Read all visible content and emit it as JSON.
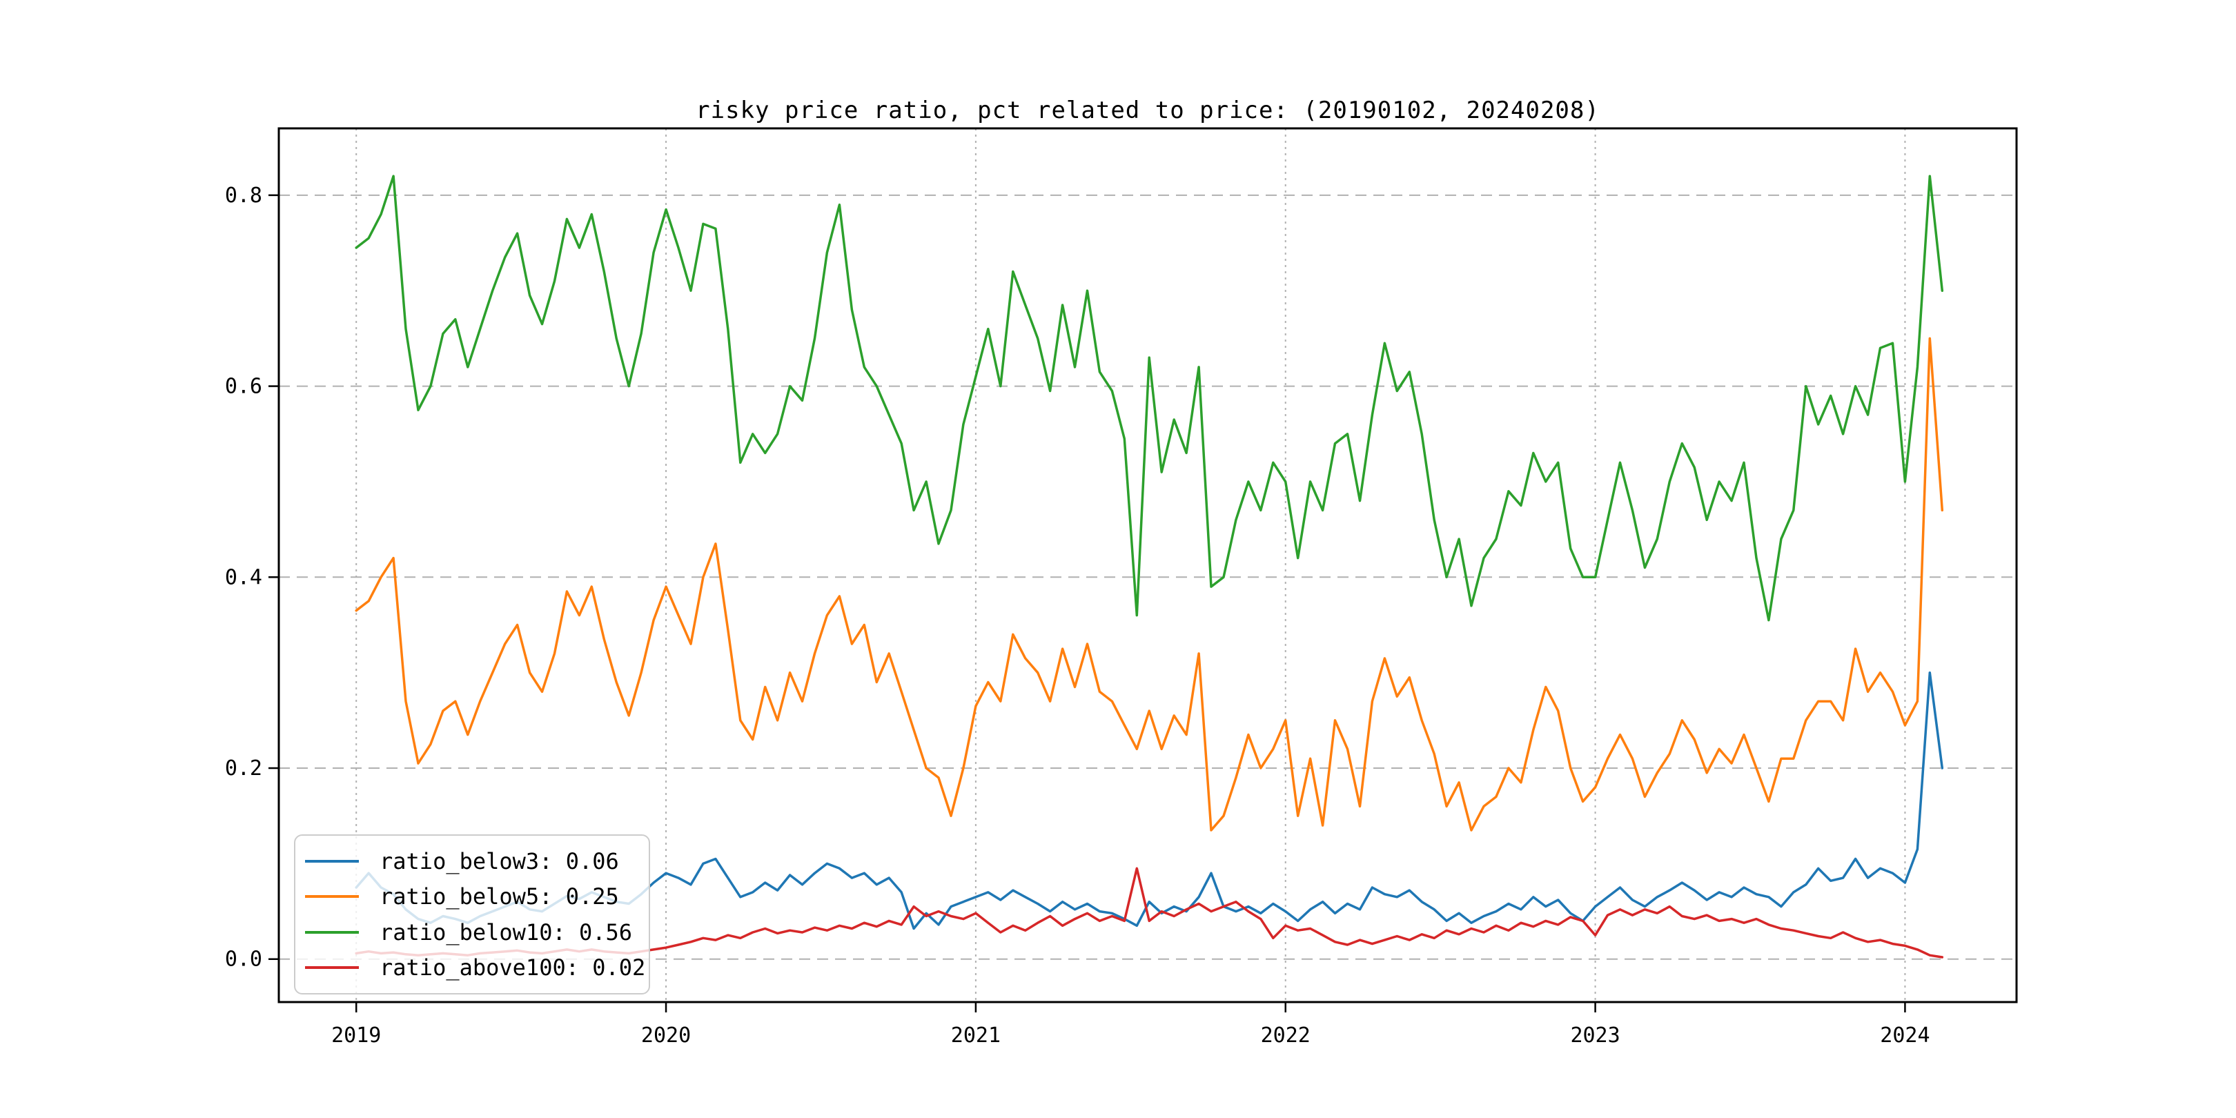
{
  "figure": {
    "background": "#ffffff"
  },
  "chart_data": {
    "type": "line",
    "title": "risky price ratio, pct related to price: (20190102, 20240208)",
    "xlabel": "",
    "ylabel": "",
    "grid": {
      "horizontal_style": "dashed",
      "vertical_style": "dotted",
      "color": "#b0b0b0"
    },
    "frame_color": "#000000",
    "legend_position": "lower left",
    "x_axis": {
      "tick_labels": [
        "2019",
        "2020",
        "2021",
        "2022",
        "2023",
        "2024"
      ],
      "tick_values": [
        2019,
        2020,
        2021,
        2022,
        2023,
        2024
      ],
      "range": [
        2018.75,
        2024.36
      ]
    },
    "y_axis": {
      "tick_labels": [
        "0.0",
        "0.2",
        "0.4",
        "0.6",
        "0.8"
      ],
      "tick_values": [
        0.0,
        0.2,
        0.4,
        0.6,
        0.8
      ],
      "range": [
        -0.045,
        0.87
      ]
    },
    "x_start": 2019.0,
    "x_step": 0.04,
    "series": [
      {
        "name": "ratio_below3",
        "legend_label": "ratio_below3: 0.06",
        "color": "#1f77b4",
        "values": [
          0.075,
          0.09,
          0.075,
          0.068,
          0.052,
          0.042,
          0.038,
          0.045,
          0.042,
          0.038,
          0.045,
          0.05,
          0.055,
          0.06,
          0.052,
          0.05,
          0.058,
          0.066,
          0.063,
          0.07,
          0.065,
          0.06,
          0.058,
          0.068,
          0.08,
          0.09,
          0.085,
          0.078,
          0.1,
          0.105,
          0.085,
          0.065,
          0.07,
          0.08,
          0.072,
          0.088,
          0.078,
          0.09,
          0.1,
          0.095,
          0.085,
          0.09,
          0.078,
          0.085,
          0.07,
          0.032,
          0.048,
          0.036,
          0.055,
          0.06,
          0.065,
          0.07,
          0.062,
          0.072,
          0.065,
          0.058,
          0.05,
          0.06,
          0.052,
          0.058,
          0.05,
          0.048,
          0.042,
          0.035,
          0.06,
          0.048,
          0.055,
          0.05,
          0.065,
          0.09,
          0.055,
          0.05,
          0.055,
          0.048,
          0.058,
          0.05,
          0.04,
          0.052,
          0.06,
          0.048,
          0.058,
          0.052,
          0.075,
          0.068,
          0.065,
          0.072,
          0.06,
          0.052,
          0.04,
          0.048,
          0.038,
          0.045,
          0.05,
          0.058,
          0.052,
          0.065,
          0.055,
          0.062,
          0.048,
          0.04,
          0.055,
          0.065,
          0.075,
          0.062,
          0.055,
          0.065,
          0.072,
          0.08,
          0.072,
          0.062,
          0.07,
          0.065,
          0.075,
          0.068,
          0.065,
          0.055,
          0.07,
          0.078,
          0.095,
          0.082,
          0.085,
          0.105,
          0.085,
          0.095,
          0.09,
          0.08,
          0.115,
          0.3,
          0.2
        ]
      },
      {
        "name": "ratio_below5",
        "legend_label": "ratio_below5: 0.25",
        "color": "#ff7f0e",
        "values": [
          0.365,
          0.375,
          0.4,
          0.42,
          0.27,
          0.205,
          0.225,
          0.26,
          0.27,
          0.235,
          0.27,
          0.3,
          0.33,
          0.35,
          0.3,
          0.28,
          0.32,
          0.385,
          0.36,
          0.39,
          0.335,
          0.29,
          0.255,
          0.3,
          0.355,
          0.39,
          0.36,
          0.33,
          0.4,
          0.435,
          0.345,
          0.25,
          0.23,
          0.285,
          0.25,
          0.3,
          0.27,
          0.32,
          0.36,
          0.38,
          0.33,
          0.35,
          0.29,
          0.32,
          0.28,
          0.24,
          0.2,
          0.19,
          0.15,
          0.2,
          0.265,
          0.29,
          0.27,
          0.34,
          0.315,
          0.3,
          0.27,
          0.325,
          0.285,
          0.33,
          0.28,
          0.27,
          0.245,
          0.22,
          0.26,
          0.22,
          0.255,
          0.235,
          0.32,
          0.135,
          0.15,
          0.19,
          0.235,
          0.2,
          0.22,
          0.25,
          0.15,
          0.21,
          0.14,
          0.25,
          0.22,
          0.16,
          0.27,
          0.315,
          0.275,
          0.295,
          0.25,
          0.215,
          0.16,
          0.185,
          0.135,
          0.16,
          0.17,
          0.2,
          0.185,
          0.24,
          0.285,
          0.26,
          0.2,
          0.165,
          0.18,
          0.21,
          0.235,
          0.21,
          0.17,
          0.195,
          0.215,
          0.25,
          0.23,
          0.195,
          0.22,
          0.205,
          0.235,
          0.2,
          0.165,
          0.21,
          0.21,
          0.25,
          0.27,
          0.27,
          0.25,
          0.325,
          0.28,
          0.3,
          0.28,
          0.245,
          0.27,
          0.65,
          0.47
        ]
      },
      {
        "name": "ratio_below10",
        "legend_label": "ratio_below10: 0.56",
        "color": "#2ca02c",
        "values": [
          0.745,
          0.755,
          0.78,
          0.82,
          0.66,
          0.575,
          0.6,
          0.655,
          0.67,
          0.62,
          0.66,
          0.7,
          0.735,
          0.76,
          0.695,
          0.665,
          0.71,
          0.775,
          0.745,
          0.78,
          0.72,
          0.65,
          0.6,
          0.655,
          0.74,
          0.785,
          0.745,
          0.7,
          0.77,
          0.765,
          0.66,
          0.52,
          0.55,
          0.53,
          0.55,
          0.6,
          0.585,
          0.65,
          0.74,
          0.79,
          0.68,
          0.62,
          0.6,
          0.57,
          0.54,
          0.47,
          0.5,
          0.435,
          0.47,
          0.56,
          0.61,
          0.66,
          0.6,
          0.72,
          0.685,
          0.65,
          0.595,
          0.685,
          0.62,
          0.7,
          0.615,
          0.595,
          0.545,
          0.36,
          0.63,
          0.51,
          0.565,
          0.53,
          0.62,
          0.39,
          0.4,
          0.46,
          0.5,
          0.47,
          0.52,
          0.5,
          0.42,
          0.5,
          0.47,
          0.54,
          0.55,
          0.48,
          0.57,
          0.645,
          0.595,
          0.615,
          0.55,
          0.46,
          0.4,
          0.44,
          0.37,
          0.42,
          0.44,
          0.49,
          0.475,
          0.53,
          0.5,
          0.52,
          0.43,
          0.4,
          0.4,
          0.46,
          0.52,
          0.47,
          0.41,
          0.44,
          0.5,
          0.54,
          0.515,
          0.46,
          0.5,
          0.48,
          0.52,
          0.42,
          0.355,
          0.44,
          0.47,
          0.6,
          0.56,
          0.59,
          0.55,
          0.6,
          0.57,
          0.64,
          0.645,
          0.5,
          0.62,
          0.82,
          0.7
        ]
      },
      {
        "name": "ratio_above100",
        "legend_label": "ratio_above100: 0.02",
        "color": "#d62728",
        "values": [
          0.006,
          0.008,
          0.006,
          0.007,
          0.005,
          0.004,
          0.005,
          0.006,
          0.005,
          0.004,
          0.006,
          0.007,
          0.008,
          0.009,
          0.007,
          0.006,
          0.008,
          0.01,
          0.008,
          0.01,
          0.008,
          0.007,
          0.006,
          0.008,
          0.01,
          0.012,
          0.015,
          0.018,
          0.022,
          0.02,
          0.025,
          0.022,
          0.028,
          0.032,
          0.027,
          0.03,
          0.028,
          0.033,
          0.03,
          0.035,
          0.032,
          0.038,
          0.034,
          0.04,
          0.036,
          0.055,
          0.045,
          0.05,
          0.045,
          0.042,
          0.048,
          0.038,
          0.028,
          0.035,
          0.03,
          0.038,
          0.045,
          0.035,
          0.042,
          0.048,
          0.04,
          0.045,
          0.04,
          0.095,
          0.04,
          0.05,
          0.045,
          0.052,
          0.058,
          0.05,
          0.055,
          0.06,
          0.05,
          0.042,
          0.022,
          0.035,
          0.03,
          0.032,
          0.025,
          0.018,
          0.015,
          0.02,
          0.016,
          0.02,
          0.024,
          0.02,
          0.026,
          0.022,
          0.03,
          0.026,
          0.032,
          0.028,
          0.035,
          0.03,
          0.038,
          0.034,
          0.04,
          0.036,
          0.044,
          0.04,
          0.025,
          0.046,
          0.052,
          0.046,
          0.052,
          0.048,
          0.055,
          0.045,
          0.042,
          0.046,
          0.04,
          0.042,
          0.038,
          0.042,
          0.036,
          0.032,
          0.03,
          0.027,
          0.024,
          0.022,
          0.028,
          0.022,
          0.018,
          0.02,
          0.016,
          0.014,
          0.01,
          0.004,
          0.002
        ]
      }
    ]
  }
}
